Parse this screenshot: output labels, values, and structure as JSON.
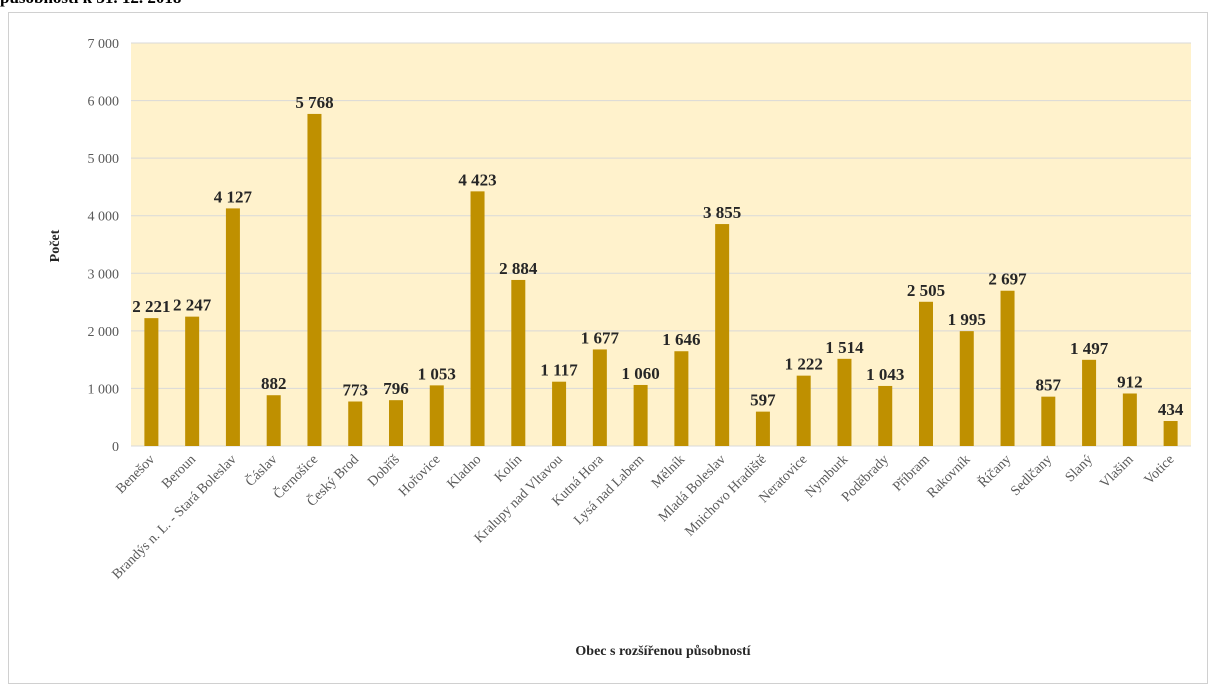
{
  "page": {
    "title": "působnosti k 31. 12. 2018"
  },
  "colors": {
    "plot_background": "#FFF2CC",
    "bar": "#BF9000",
    "gridline": "#D9D9D9"
  },
  "chart_data": {
    "type": "bar",
    "title": "",
    "xlabel": "Obec s rozšířenou působností",
    "ylabel": "Počet",
    "ylim": [
      0,
      7000
    ],
    "yticks": [
      0,
      1000,
      2000,
      3000,
      4000,
      5000,
      6000,
      7000
    ],
    "ytick_labels": [
      "0",
      "1 000",
      "2 000",
      "3 000",
      "4 000",
      "5 000",
      "6 000",
      "7 000"
    ],
    "grid": true,
    "legend": "none",
    "categories": [
      "Benešov",
      "Beroun",
      "Brandýs n. L. - Stará Boleslav",
      "Čáslav",
      "Černošice",
      "Český Brod",
      "Dobříš",
      "Hořovice",
      "Kladno",
      "Kolín",
      "Kralupy nad Vltavou",
      "Kutná Hora",
      "Lysá nad Labem",
      "Mělník",
      "Mladá Boleslav",
      "Mnichovo Hradiště",
      "Neratovice",
      "Nymburk",
      "Poděbrady",
      "Příbram",
      "Rakovník",
      "Říčany",
      "Sedlčany",
      "Slaný",
      "Vlašim",
      "Votice"
    ],
    "values": [
      2221,
      2247,
      4127,
      882,
      5768,
      773,
      796,
      1053,
      4423,
      2884,
      1117,
      1677,
      1060,
      1646,
      3855,
      597,
      1222,
      1514,
      1043,
      2505,
      1995,
      2697,
      857,
      1497,
      912,
      434
    ],
    "data_labels": [
      "2 221",
      "2 247",
      "4 127",
      "882",
      "5 768",
      "773",
      "796",
      "1 053",
      "4 423",
      "2 884",
      "1 117",
      "1 677",
      "1 060",
      "1 646",
      "3 855",
      "597",
      "1 222",
      "1 514",
      "1 043",
      "2 505",
      "1 995",
      "2 697",
      "857",
      "1 497",
      "912",
      "434"
    ]
  }
}
